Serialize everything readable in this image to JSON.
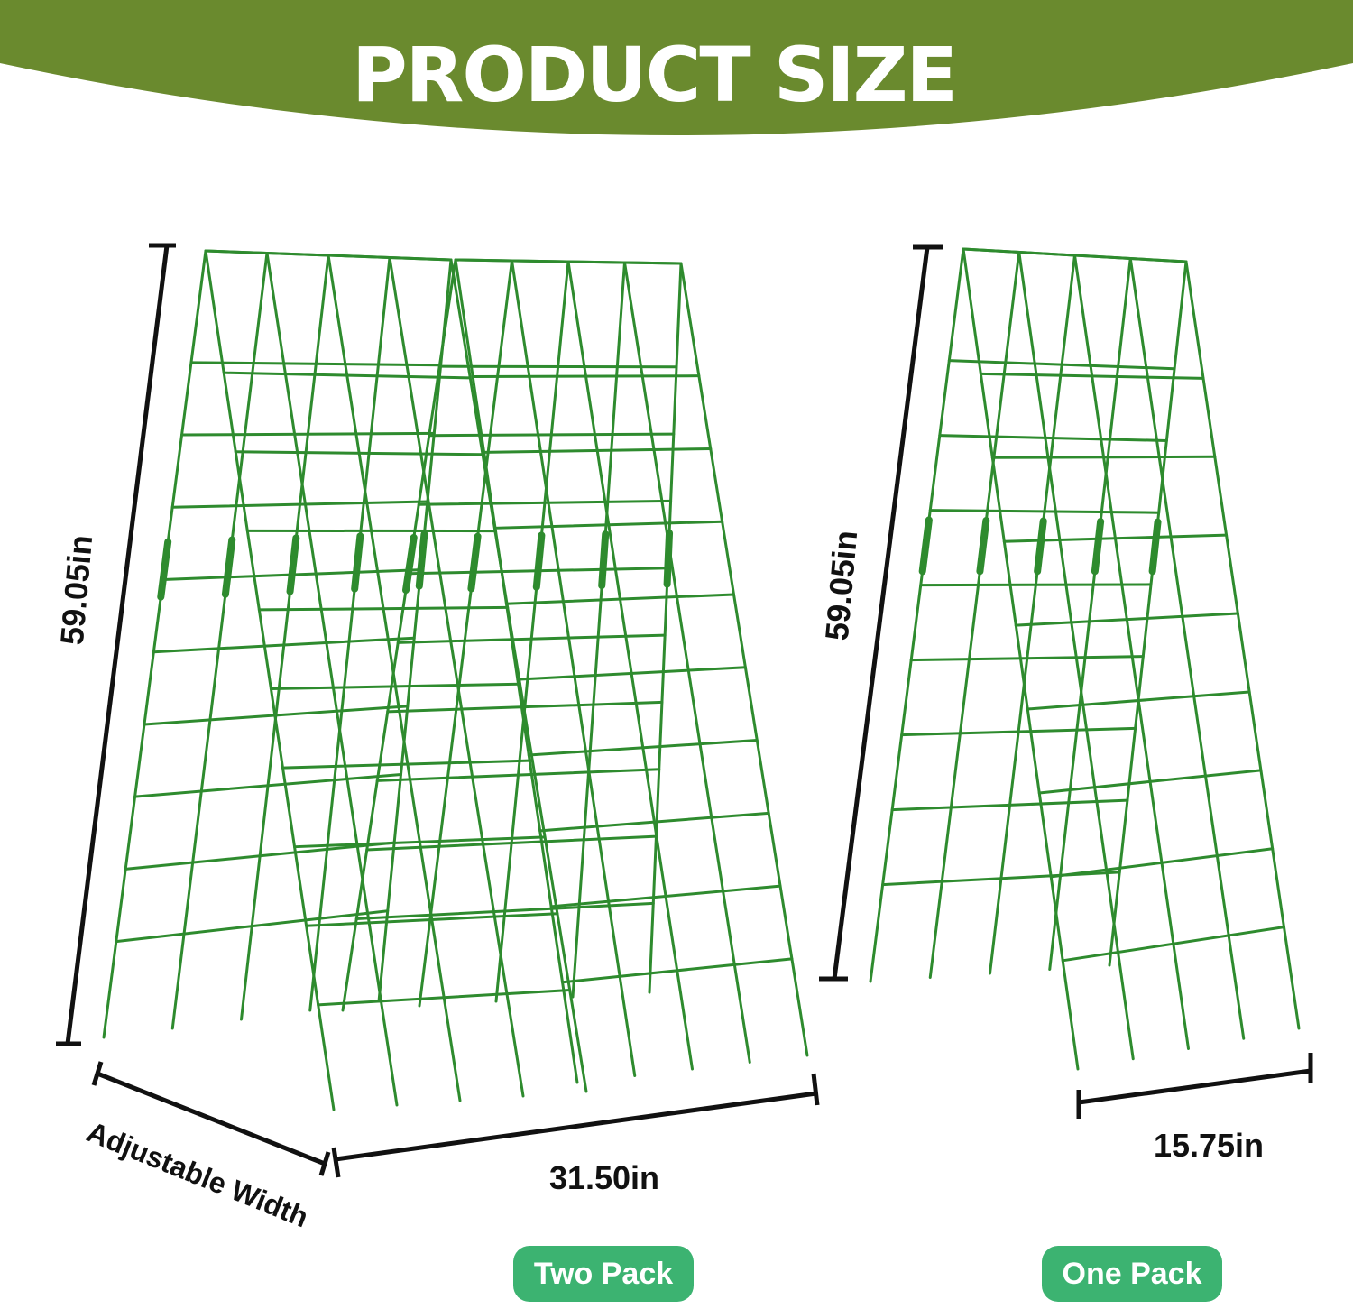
{
  "header": {
    "title": "PRODUCT SIZE",
    "color": "#6a8a2e"
  },
  "two_pack": {
    "height_label": "59.05in",
    "width_label": "31.50in",
    "adjustable_label": "Adjustable Width",
    "pack_label": "Two Pack"
  },
  "one_pack": {
    "height_label": "59.05in",
    "width_label": "15.75in",
    "pack_label": "One Pack"
  },
  "colors": {
    "trellis": "#2e8b2e",
    "pill": "#3cb371",
    "dimension_line": "#111111"
  }
}
